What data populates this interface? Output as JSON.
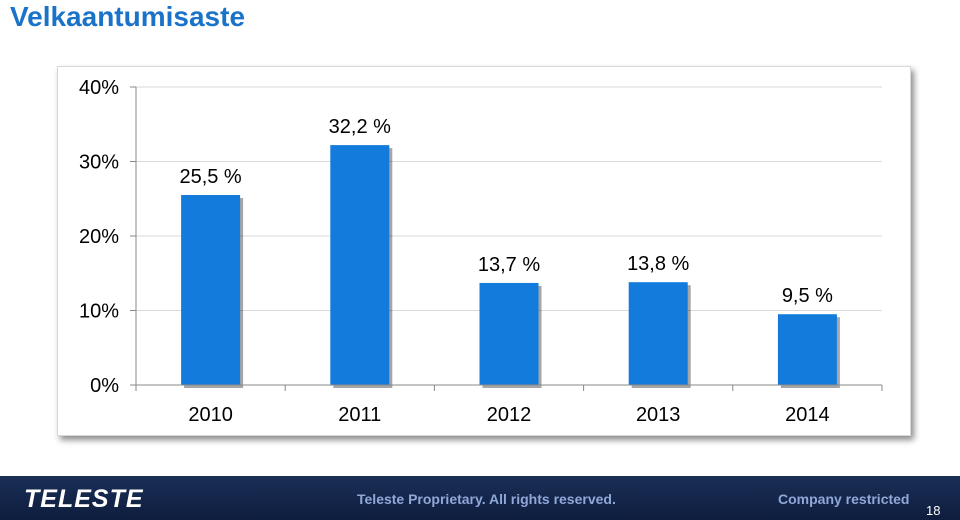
{
  "slide": {
    "title": "Velkaantumisaste",
    "footer": {
      "logo": "TELESTE",
      "proprietary": "Teleste Proprietary. All rights reserved.",
      "restricted": "Company restricted",
      "page_number": "18"
    }
  },
  "chart_data": {
    "type": "bar",
    "categories": [
      "2010",
      "2011",
      "2012",
      "2013",
      "2014"
    ],
    "values": [
      25.5,
      32.2,
      13.7,
      13.8,
      9.5
    ],
    "data_labels": [
      "25,5 %",
      "32,2 %",
      "13,7 %",
      "13,8 %",
      "9,5 %"
    ],
    "y_ticks": [
      0,
      10,
      20,
      30,
      40
    ],
    "y_tick_labels": [
      "0%",
      "10%",
      "20%",
      "30%",
      "40%"
    ],
    "ylim": [
      0,
      40
    ],
    "grid": true,
    "legend": "none",
    "bar_color": "#127bdb",
    "gridline_color": "#d9d9d9"
  }
}
